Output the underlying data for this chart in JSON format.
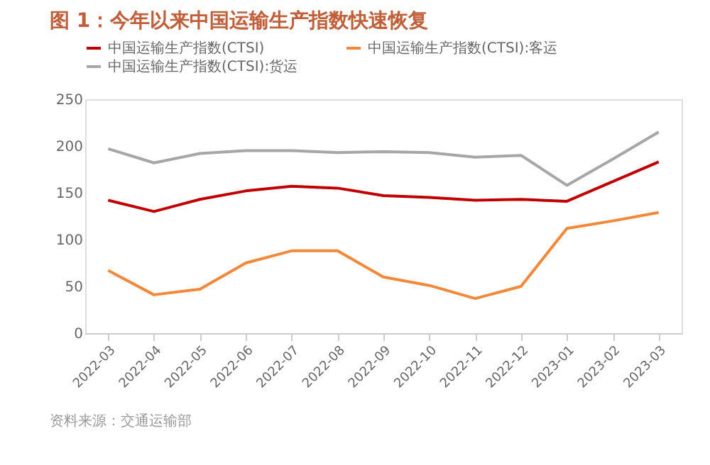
{
  "chart_data": {
    "type": "line",
    "title": "图 1：今年以来中国运输生产指数快速恢复",
    "categories": [
      "2022-03",
      "2022-04",
      "2022-05",
      "2022-06",
      "2022-07",
      "2022-08",
      "2022-09",
      "2022-10",
      "2022-11",
      "2022-12",
      "2023-01",
      "2023-02",
      "2023-03"
    ],
    "series": [
      {
        "name": "中国运输生产指数(CTSI)",
        "color": "#c00000",
        "values": [
          142,
          130,
          143,
          152,
          157,
          155,
          147,
          145,
          142,
          143,
          141,
          162,
          183
        ]
      },
      {
        "name": "中国运输生产指数(CTSI):客运",
        "color": "#f4883a",
        "values": [
          67,
          41,
          47,
          75,
          88,
          88,
          60,
          51,
          37,
          50,
          112,
          120,
          129
        ]
      },
      {
        "name": "中国运输生产指数(CTSI):货运",
        "color": "#a6a6a6",
        "values": [
          197,
          182,
          192,
          195,
          195,
          193,
          194,
          193,
          188,
          190,
          158,
          186,
          215
        ]
      }
    ],
    "ylim": [
      0,
      250
    ],
    "yticks": [
      0,
      50,
      100,
      150,
      200,
      250
    ],
    "grid": false,
    "legend": "top",
    "marker": "none",
    "line_style": "solid",
    "annotations": [
      "资料来源：交通运输部"
    ]
  }
}
